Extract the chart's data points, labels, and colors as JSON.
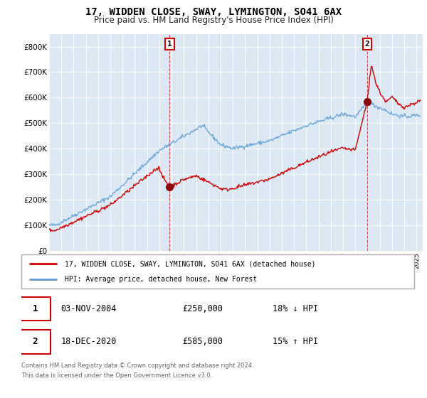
{
  "title": "17, WIDDEN CLOSE, SWAY, LYMINGTON, SO41 6AX",
  "subtitle": "Price paid vs. HM Land Registry's House Price Index (HPI)",
  "ylim": [
    0,
    850000
  ],
  "yticks": [
    0,
    100000,
    200000,
    300000,
    400000,
    500000,
    600000,
    700000,
    800000
  ],
  "ytick_labels": [
    "£0",
    "£100K",
    "£200K",
    "£300K",
    "£400K",
    "£500K",
    "£600K",
    "£700K",
    "£800K"
  ],
  "sale1": {
    "date_num": 2004.84,
    "price": 250000,
    "label": "1",
    "date_str": "03-NOV-2004",
    "pct": "18% ↓ HPI"
  },
  "sale2": {
    "date_num": 2020.96,
    "price": 585000,
    "label": "2",
    "date_str": "18-DEC-2020",
    "pct": "15% ↑ HPI"
  },
  "hpi_color": "#5b9bd5",
  "sale_color": "#cc0000",
  "legend_sale_label": "17, WIDDEN CLOSE, SWAY, LYMINGTON, SO41 6AX (detached house)",
  "legend_hpi_label": "HPI: Average price, detached house, New Forest",
  "footer1": "Contains HM Land Registry data © Crown copyright and database right 2024.",
  "footer2": "This data is licensed under the Open Government Licence v3.0.",
  "xmin": 1995,
  "xmax": 2025.5,
  "background_color": "#ffffff",
  "plot_bg_color": "#dce9f5"
}
